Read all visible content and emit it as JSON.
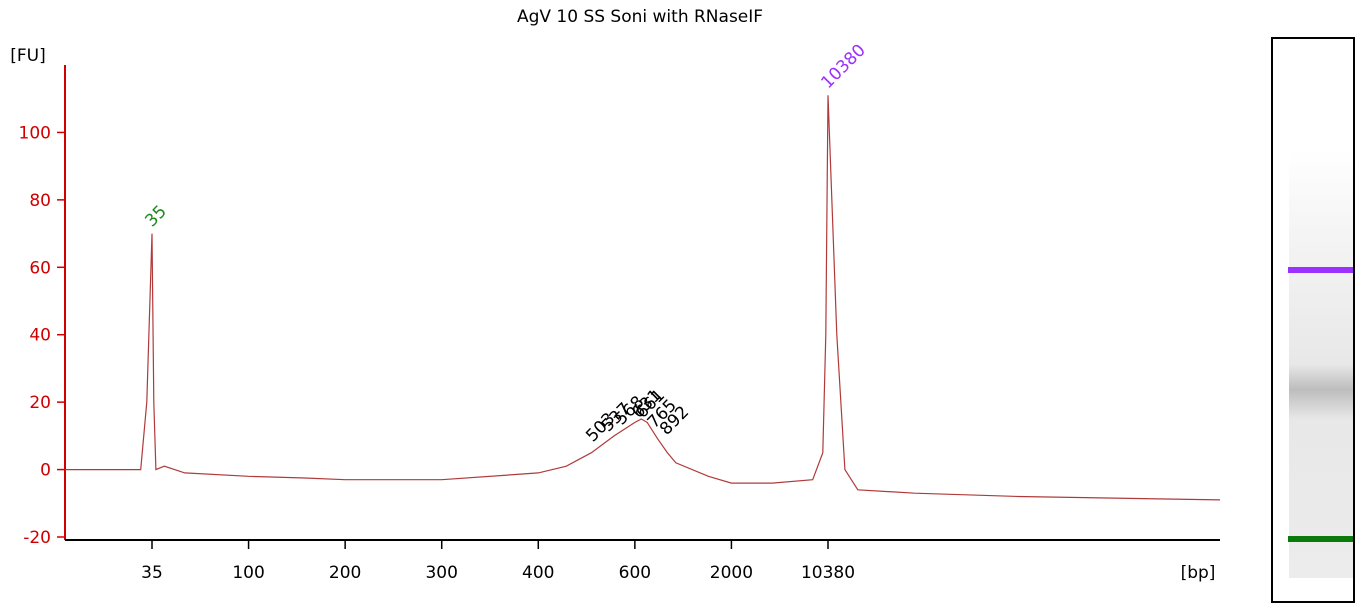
{
  "chart_data": {
    "type": "line",
    "title": "AgV 10 SS Soni with RNaseIF",
    "y_label": "[FU]",
    "x_label": "[bp]",
    "ylim": [
      -20,
      120
    ],
    "yticks": [
      -20,
      0,
      20,
      40,
      60,
      80,
      100
    ],
    "xlim": [
      25,
      40000
    ],
    "xticks": [
      35,
      100,
      200,
      300,
      400,
      600,
      2000,
      10380
    ],
    "axis_color": "#d00000",
    "series": [
      {
        "color": "#b03a3a",
        "x": [
          25,
          30,
          33.5,
          34.3,
          35,
          35.7,
          36.5,
          40,
          50,
          100,
          150,
          200,
          300,
          400,
          450,
          500,
          550,
          600,
          650,
          700,
          800,
          900,
          1000,
          1500,
          2000,
          4000,
          8000,
          9500,
          10000,
          10380,
          10700,
          11000,
          11500,
          14000,
          20000,
          40000
        ],
        "values": [
          0,
          0,
          0,
          20,
          70,
          20,
          0,
          1,
          -1,
          -2,
          -2.5,
          -3,
          -3,
          -1,
          1,
          5,
          10,
          14,
          15,
          14,
          9,
          5,
          2,
          -2,
          -4,
          -4,
          -3,
          5,
          40,
          111,
          40,
          0,
          -6,
          -7,
          -8,
          -9
        ]
      }
    ],
    "peaks": [
      {
        "x": 35,
        "y": 70,
        "color": "#1a8a1a"
      },
      {
        "x": 10380,
        "y": 111,
        "color": "#9b30ff"
      }
    ],
    "smear_labels": {
      "color": "#000000",
      "x": [
        503,
        537,
        568,
        631,
        661,
        765,
        892
      ],
      "y": [
        8,
        11,
        13,
        15,
        15,
        12,
        10
      ]
    }
  }
}
